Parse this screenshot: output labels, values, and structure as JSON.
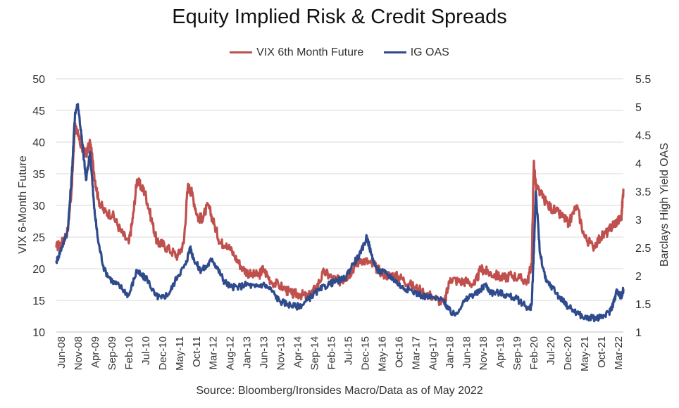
{
  "chart_data": {
    "type": "line",
    "title": "Equity Implied Risk & Credit Spreads",
    "source": "Source: Bloomberg/Ironsides Macro/Data as of May 2022",
    "ylabel_left": "VIX 6-Month Future",
    "ylabel_right": "Barclays High Yield OAS",
    "ylim_left": [
      10,
      50
    ],
    "ylim_right": [
      1,
      5.5
    ],
    "yticks_left": [
      "10",
      "15",
      "20",
      "25",
      "30",
      "35",
      "40",
      "45",
      "50"
    ],
    "yticks_right": [
      "1",
      "1.5",
      "2",
      "2.5",
      "3",
      "3.5",
      "4",
      "4.5",
      "5",
      "5.5"
    ],
    "xlim": [
      2008.42,
      2022.35
    ],
    "grid": true,
    "legend_position": "top-center",
    "x_tick_labels": [
      "Jun-08",
      "Nov-08",
      "Apr-09",
      "Sep-09",
      "Feb-10",
      "Jul-10",
      "Dec-10",
      "May-11",
      "Oct-11",
      "Mar-12",
      "Aug-12",
      "Jan-13",
      "Jun-13",
      "Nov-13",
      "Apr-14",
      "Sep-14",
      "Feb-15",
      "Jul-15",
      "Dec-15",
      "May-16",
      "Oct-16",
      "Mar-17",
      "Aug-17",
      "Jan-18",
      "Jun-18",
      "Nov-18",
      "Apr-19",
      "Sep-19",
      "Feb-20",
      "Jul-20",
      "Dec-20",
      "May-21",
      "Oct-21",
      "Mar-22"
    ],
    "series": [
      {
        "name": "VIX 6th Month Future",
        "axis": "left",
        "color": "#c0504d",
        "x": [
          2008.42,
          2008.55,
          2008.7,
          2008.8,
          2008.88,
          2008.95,
          2009.05,
          2009.15,
          2009.25,
          2009.35,
          2009.45,
          2009.6,
          2009.8,
          2010.0,
          2010.2,
          2010.3,
          2010.4,
          2010.5,
          2010.6,
          2010.75,
          2010.9,
          2011.0,
          2011.2,
          2011.4,
          2011.55,
          2011.65,
          2011.75,
          2011.9,
          2012.0,
          2012.15,
          2012.3,
          2012.45,
          2012.6,
          2012.8,
          2013.0,
          2013.2,
          2013.4,
          2013.5,
          2013.7,
          2014.0,
          2014.2,
          2014.4,
          2014.6,
          2014.8,
          2015.0,
          2015.2,
          2015.4,
          2015.6,
          2015.7,
          2015.9,
          2016.1,
          2016.3,
          2016.5,
          2016.7,
          2016.9,
          2017.1,
          2017.4,
          2017.7,
          2017.95,
          2018.1,
          2018.3,
          2018.5,
          2018.7,
          2018.85,
          2019.0,
          2019.2,
          2019.4,
          2019.6,
          2019.8,
          2020.0,
          2020.1,
          2020.15,
          2020.2,
          2020.3,
          2020.5,
          2020.7,
          2020.9,
          2021.0,
          2021.2,
          2021.4,
          2021.6,
          2021.8,
          2022.0,
          2022.1,
          2022.2,
          2022.3,
          2022.35
        ],
        "y": [
          23.5,
          24,
          26,
          33,
          43,
          41,
          39,
          38,
          40,
          35,
          31,
          29,
          28.5,
          26,
          24,
          28,
          34,
          33,
          32,
          28,
          24,
          24,
          23,
          22,
          24,
          33,
          32,
          28,
          28,
          30,
          27,
          24,
          24,
          22,
          20,
          19,
          19,
          20,
          18,
          17,
          16,
          16,
          15.5,
          17,
          19.5,
          18.5,
          18,
          19,
          20,
          21.5,
          21,
          20,
          19,
          19,
          18.5,
          17.5,
          16.5,
          15.5,
          14.5,
          18.5,
          18,
          18,
          17.5,
          20,
          19.5,
          19,
          18.5,
          19,
          18.5,
          18,
          21,
          37,
          33,
          32,
          30,
          29,
          28,
          27,
          30,
          25,
          23.5,
          25,
          26,
          27,
          27.5,
          28,
          32.5
        ]
      },
      {
        "name": "IG OAS",
        "axis": "right",
        "color": "#2f4b8c",
        "x": [
          2008.42,
          2008.55,
          2008.7,
          2008.8,
          2008.88,
          2008.95,
          2009.05,
          2009.15,
          2009.25,
          2009.35,
          2009.45,
          2009.6,
          2009.8,
          2010.0,
          2010.2,
          2010.4,
          2010.5,
          2010.65,
          2010.85,
          2011.0,
          2011.2,
          2011.4,
          2011.6,
          2011.7,
          2011.8,
          2011.95,
          2012.1,
          2012.25,
          2012.4,
          2012.55,
          2012.7,
          2012.9,
          2013.1,
          2013.3,
          2013.5,
          2013.7,
          2013.9,
          2014.1,
          2014.3,
          2014.5,
          2014.7,
          2014.9,
          2015.1,
          2015.3,
          2015.5,
          2015.7,
          2015.9,
          2016.05,
          2016.15,
          2016.3,
          2016.5,
          2016.7,
          2016.9,
          2017.1,
          2017.4,
          2017.7,
          2017.95,
          2018.05,
          2018.2,
          2018.4,
          2018.6,
          2018.8,
          2018.95,
          2019.1,
          2019.3,
          2019.5,
          2019.7,
          2019.9,
          2020.05,
          2020.1,
          2020.15,
          2020.2,
          2020.3,
          2020.45,
          2020.6,
          2020.8,
          2021.0,
          2021.2,
          2021.4,
          2021.6,
          2021.8,
          2022.0,
          2022.1,
          2022.2,
          2022.3,
          2022.35
        ],
        "y": [
          2.25,
          2.5,
          2.8,
          3.8,
          4.9,
          5.05,
          4.4,
          3.7,
          4.2,
          3.2,
          2.6,
          2.1,
          1.9,
          1.8,
          1.65,
          2.1,
          2.0,
          1.95,
          1.65,
          1.6,
          1.7,
          2.0,
          2.2,
          2.5,
          2.3,
          2.1,
          2.15,
          2.3,
          2.1,
          1.9,
          1.8,
          1.8,
          1.85,
          1.8,
          1.85,
          1.75,
          1.55,
          1.5,
          1.45,
          1.5,
          1.65,
          1.75,
          1.85,
          1.9,
          1.95,
          2.2,
          2.4,
          2.7,
          2.4,
          2.1,
          2.05,
          1.95,
          1.8,
          1.75,
          1.65,
          1.6,
          1.55,
          1.4,
          1.3,
          1.5,
          1.65,
          1.7,
          1.85,
          1.7,
          1.7,
          1.65,
          1.6,
          1.5,
          1.4,
          1.5,
          2.4,
          3.5,
          2.4,
          1.9,
          1.8,
          1.6,
          1.45,
          1.35,
          1.25,
          1.25,
          1.25,
          1.35,
          1.5,
          1.75,
          1.6,
          1.75
        ]
      }
    ]
  }
}
